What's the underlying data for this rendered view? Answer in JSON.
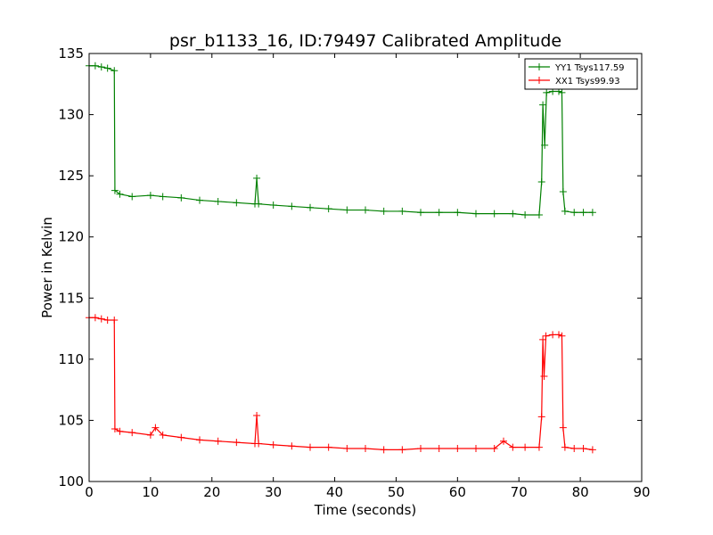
{
  "chart_data": {
    "type": "line",
    "title": "psr_b1133_16, ID:79497 Calibrated Amplitude",
    "xlabel": "Time (seconds)",
    "ylabel": "Power in Kelvin",
    "xlim": [
      0,
      90
    ],
    "ylim": [
      100,
      135
    ],
    "xticks": [
      "0",
      "10",
      "20",
      "30",
      "40",
      "50",
      "60",
      "70",
      "80",
      "90"
    ],
    "yticks": [
      "100",
      "105",
      "110",
      "115",
      "120",
      "125",
      "130",
      "135"
    ],
    "grid": false,
    "legend_position": "top-right",
    "series": [
      {
        "name": "YY1 Tsys117.59",
        "color": "#008000",
        "marker": "+",
        "points": [
          [
            0.0,
            134.0
          ],
          [
            1.0,
            134.0
          ],
          [
            2.0,
            133.9
          ],
          [
            3.0,
            133.8
          ],
          [
            4.1,
            133.6
          ],
          [
            4.2,
            123.8
          ],
          [
            5.0,
            123.5
          ],
          [
            7.0,
            123.3
          ],
          [
            10.0,
            123.4
          ],
          [
            12.0,
            123.3
          ],
          [
            15.0,
            123.2
          ],
          [
            18.0,
            123.0
          ],
          [
            21.0,
            122.9
          ],
          [
            24.0,
            122.8
          ],
          [
            27.0,
            122.7
          ],
          [
            27.3,
            124.8
          ],
          [
            27.6,
            122.7
          ],
          [
            30.0,
            122.6
          ],
          [
            33.0,
            122.5
          ],
          [
            36.0,
            122.4
          ],
          [
            39.0,
            122.3
          ],
          [
            42.0,
            122.2
          ],
          [
            45.0,
            122.2
          ],
          [
            48.0,
            122.1
          ],
          [
            51.0,
            122.1
          ],
          [
            54.0,
            122.0
          ],
          [
            57.0,
            122.0
          ],
          [
            60.0,
            122.0
          ],
          [
            63.0,
            121.9
          ],
          [
            66.0,
            121.9
          ],
          [
            69.0,
            121.9
          ],
          [
            71.0,
            121.8
          ],
          [
            73.3,
            121.8
          ],
          [
            73.7,
            124.5
          ],
          [
            73.9,
            130.8
          ],
          [
            74.2,
            127.5
          ],
          [
            74.5,
            131.8
          ],
          [
            75.5,
            131.9
          ],
          [
            76.5,
            131.9
          ],
          [
            77.0,
            131.8
          ],
          [
            77.2,
            123.7
          ],
          [
            77.5,
            122.1
          ],
          [
            79.0,
            122.0
          ],
          [
            80.5,
            122.0
          ],
          [
            82.0,
            122.0
          ]
        ]
      },
      {
        "name": "XX1 Tsys99.93",
        "color": "#ff0000",
        "marker": "+",
        "points": [
          [
            0.0,
            113.4
          ],
          [
            1.0,
            113.4
          ],
          [
            2.0,
            113.3
          ],
          [
            3.0,
            113.2
          ],
          [
            4.1,
            113.2
          ],
          [
            4.2,
            104.3
          ],
          [
            5.0,
            104.1
          ],
          [
            7.0,
            104.0
          ],
          [
            10.0,
            103.8
          ],
          [
            10.8,
            104.4
          ],
          [
            12.0,
            103.8
          ],
          [
            15.0,
            103.6
          ],
          [
            18.0,
            103.4
          ],
          [
            21.0,
            103.3
          ],
          [
            24.0,
            103.2
          ],
          [
            27.0,
            103.1
          ],
          [
            27.3,
            105.4
          ],
          [
            27.6,
            103.1
          ],
          [
            30.0,
            103.0
          ],
          [
            33.0,
            102.9
          ],
          [
            36.0,
            102.8
          ],
          [
            39.0,
            102.8
          ],
          [
            42.0,
            102.7
          ],
          [
            45.0,
            102.7
          ],
          [
            48.0,
            102.6
          ],
          [
            51.0,
            102.6
          ],
          [
            54.0,
            102.7
          ],
          [
            57.0,
            102.7
          ],
          [
            60.0,
            102.7
          ],
          [
            63.0,
            102.7
          ],
          [
            66.0,
            102.7
          ],
          [
            67.5,
            103.3
          ],
          [
            69.0,
            102.8
          ],
          [
            71.0,
            102.8
          ],
          [
            73.3,
            102.8
          ],
          [
            73.7,
            105.3
          ],
          [
            73.9,
            111.6
          ],
          [
            74.1,
            108.6
          ],
          [
            74.4,
            111.9
          ],
          [
            75.5,
            112.0
          ],
          [
            76.5,
            112.0
          ],
          [
            77.0,
            111.9
          ],
          [
            77.2,
            104.4
          ],
          [
            77.5,
            102.8
          ],
          [
            79.0,
            102.7
          ],
          [
            80.5,
            102.7
          ],
          [
            82.0,
            102.6
          ]
        ]
      }
    ]
  }
}
